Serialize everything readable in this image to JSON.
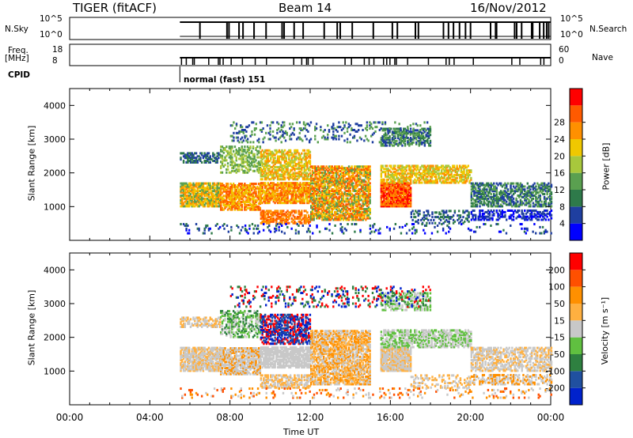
{
  "header": {
    "radar": "TIGER (fitACF)",
    "beam": "Beam 14",
    "date": "16/Nov/2012"
  },
  "panels": {
    "nsky_label": "N.Sky",
    "nsky_ticks": [
      "10^5",
      "10^0"
    ],
    "nsearch_label": "N.Search",
    "freq_label_line1": "Freq.",
    "freq_label_line2": "[MHz]",
    "freq_ticks": [
      "18",
      "8"
    ],
    "nave_ticks": [
      "60",
      "0"
    ],
    "nave_label": "Nave",
    "cpid_label": "CPID",
    "cpid_value": "normal (fast) 151"
  },
  "chart_data": [
    {
      "type": "heatmap",
      "name": "power",
      "ylabel": "Slant Range [km]",
      "xlabel": "",
      "xlim": [
        0,
        24
      ],
      "ylim": [
        0,
        4500
      ],
      "yticks": [
        1000,
        2000,
        3000,
        4000
      ],
      "colorbar": {
        "label": "Power [dB]",
        "ticks": [
          4,
          8,
          12,
          16,
          20,
          24,
          28
        ],
        "colors": [
          "#0000ff",
          "#1f3fa0",
          "#2e7a4a",
          "#5aa050",
          "#a8c83c",
          "#f0c800",
          "#ff9000",
          "#ff5a00",
          "#ff0000"
        ]
      },
      "scatter_start_h": 5.5
    },
    {
      "type": "heatmap",
      "name": "velocity",
      "ylabel": "Slant Range [km]",
      "xlabel": "Time UT",
      "xlim": [
        0,
        24
      ],
      "ylim": [
        0,
        4500
      ],
      "yticks": [
        1000,
        2000,
        3000,
        4000
      ],
      "xticks": [
        "00:00",
        "04:00",
        "08:00",
        "12:00",
        "16:00",
        "20:00",
        "00:00"
      ],
      "colorbar": {
        "label": "Velocity [m s⁻¹]",
        "ticks": [
          200,
          100,
          50,
          15,
          -15,
          -50,
          -100,
          -200
        ],
        "colors": [
          "#0022cc",
          "#2050a0",
          "#2e8040",
          "#60c040",
          "#c8c8c8",
          "#ffb040",
          "#ff9000",
          "#ff5000",
          "#ff0000"
        ]
      },
      "scatter_start_h": 5.5
    }
  ]
}
